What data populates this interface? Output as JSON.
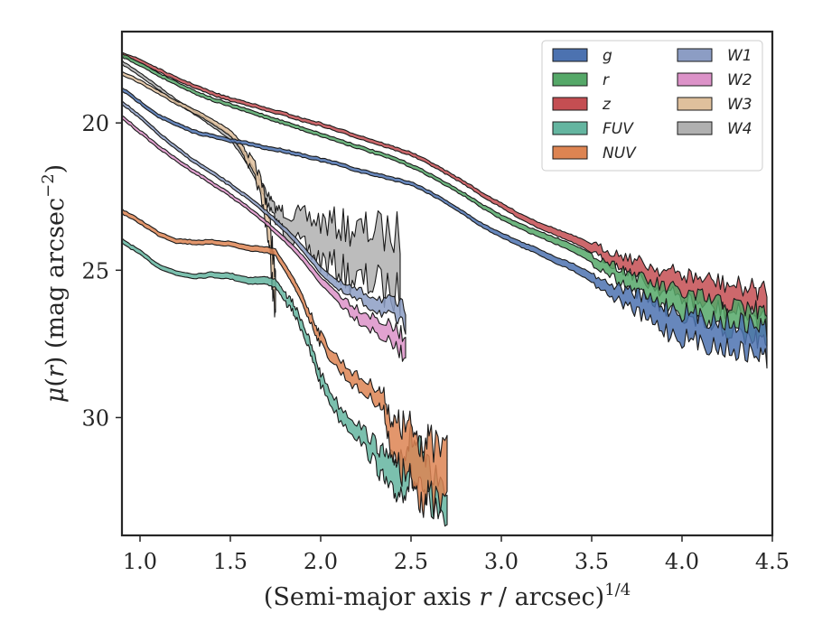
{
  "chart_data": {
    "type": "area",
    "title": "",
    "xlabel": "(Semi-major axis r / arcsec)1/4",
    "ylabel": "μ(r) (mag arcsec−2)",
    "xlim": [
      0.9,
      4.5
    ],
    "ylim": [
      34,
      16.9
    ],
    "y_inverted": true,
    "grid": false,
    "legend_position": "top-right",
    "legend_columns": 2,
    "x_ticks": [
      "1.0",
      "1.5",
      "2.0",
      "2.5",
      "3.0",
      "3.5",
      "4.0",
      "4.5"
    ],
    "y_ticks": [
      "20",
      "25",
      "30"
    ],
    "series": [
      {
        "name": "g",
        "color": "#4c72b0",
        "points": [
          [
            0.9,
            18.85
          ],
          [
            1.0,
            19.3
          ],
          [
            1.1,
            19.75
          ],
          [
            1.2,
            20.05
          ],
          [
            1.3,
            20.3
          ],
          [
            1.4,
            20.45
          ],
          [
            1.5,
            20.6
          ],
          [
            1.6,
            20.7
          ],
          [
            1.7,
            20.85
          ],
          [
            1.8,
            20.95
          ],
          [
            1.9,
            21.1
          ],
          [
            2.0,
            21.25
          ],
          [
            2.1,
            21.4
          ],
          [
            2.2,
            21.6
          ],
          [
            2.3,
            21.75
          ],
          [
            2.4,
            21.9
          ],
          [
            2.5,
            22.05
          ],
          [
            2.6,
            22.35
          ],
          [
            2.7,
            22.7
          ],
          [
            2.8,
            23.1
          ],
          [
            2.9,
            23.5
          ],
          [
            3.0,
            23.8
          ],
          [
            3.1,
            24.1
          ],
          [
            3.2,
            24.35
          ],
          [
            3.3,
            24.65
          ],
          [
            3.4,
            24.9
          ],
          [
            3.5,
            25.25
          ],
          [
            3.6,
            25.65
          ],
          [
            3.7,
            25.95
          ],
          [
            3.8,
            26.3
          ],
          [
            3.9,
            26.6
          ],
          [
            4.0,
            26.85
          ],
          [
            4.1,
            27.0
          ],
          [
            4.2,
            27.15
          ],
          [
            4.3,
            27.25
          ],
          [
            4.4,
            27.35
          ],
          [
            4.47,
            27.45
          ]
        ],
        "width": [
          0.12,
          0.12,
          0.12,
          0.12,
          0.12,
          0.12,
          0.12,
          0.12,
          0.12,
          0.12,
          0.12,
          0.12,
          0.12,
          0.12,
          0.12,
          0.12,
          0.12,
          0.12,
          0.12,
          0.12,
          0.14,
          0.16,
          0.18,
          0.2,
          0.22,
          0.25,
          0.3,
          0.4,
          0.55,
          0.7,
          0.85,
          0.9,
          0.9,
          0.9,
          0.95,
          1.0,
          1.0
        ]
      },
      {
        "name": "r",
        "color": "#55a868",
        "points": [
          [
            0.9,
            17.7
          ],
          [
            1.0,
            18.0
          ],
          [
            1.1,
            18.35
          ],
          [
            1.2,
            18.65
          ],
          [
            1.3,
            18.95
          ],
          [
            1.4,
            19.2
          ],
          [
            1.5,
            19.4
          ],
          [
            1.6,
            19.6
          ],
          [
            1.7,
            19.8
          ],
          [
            1.8,
            20.0
          ],
          [
            1.9,
            20.2
          ],
          [
            2.0,
            20.4
          ],
          [
            2.1,
            20.6
          ],
          [
            2.2,
            20.8
          ],
          [
            2.3,
            21.0
          ],
          [
            2.4,
            21.2
          ],
          [
            2.5,
            21.45
          ],
          [
            2.6,
            21.75
          ],
          [
            2.7,
            22.1
          ],
          [
            2.8,
            22.45
          ],
          [
            2.9,
            22.85
          ],
          [
            3.0,
            23.2
          ],
          [
            3.1,
            23.5
          ],
          [
            3.2,
            23.75
          ],
          [
            3.3,
            24.0
          ],
          [
            3.4,
            24.25
          ],
          [
            3.5,
            24.6
          ],
          [
            3.6,
            24.95
          ],
          [
            3.7,
            25.3
          ],
          [
            3.8,
            25.65
          ],
          [
            3.9,
            25.95
          ],
          [
            4.0,
            26.2
          ],
          [
            4.1,
            26.4
          ],
          [
            4.2,
            26.55
          ],
          [
            4.3,
            26.7
          ],
          [
            4.4,
            26.85
          ],
          [
            4.47,
            26.95
          ]
        ],
        "width": [
          0.12,
          0.12,
          0.12,
          0.12,
          0.12,
          0.12,
          0.12,
          0.12,
          0.12,
          0.12,
          0.12,
          0.12,
          0.12,
          0.12,
          0.12,
          0.12,
          0.12,
          0.12,
          0.12,
          0.12,
          0.14,
          0.16,
          0.18,
          0.2,
          0.22,
          0.25,
          0.3,
          0.4,
          0.5,
          0.6,
          0.75,
          0.85,
          0.9,
          0.9,
          0.95,
          1.0,
          1.0
        ]
      },
      {
        "name": "z",
        "color": "#c44e52",
        "points": [
          [
            0.9,
            17.65
          ],
          [
            1.0,
            17.9
          ],
          [
            1.1,
            18.2
          ],
          [
            1.2,
            18.5
          ],
          [
            1.3,
            18.75
          ],
          [
            1.4,
            19.0
          ],
          [
            1.5,
            19.2
          ],
          [
            1.6,
            19.35
          ],
          [
            1.7,
            19.55
          ],
          [
            1.8,
            19.7
          ],
          [
            1.9,
            19.9
          ],
          [
            2.0,
            20.05
          ],
          [
            2.1,
            20.25
          ],
          [
            2.2,
            20.45
          ],
          [
            2.3,
            20.65
          ],
          [
            2.4,
            20.85
          ],
          [
            2.5,
            21.05
          ],
          [
            2.6,
            21.35
          ],
          [
            2.7,
            21.7
          ],
          [
            2.8,
            22.05
          ],
          [
            2.9,
            22.45
          ],
          [
            3.0,
            22.8
          ],
          [
            3.1,
            23.15
          ],
          [
            3.2,
            23.45
          ],
          [
            3.3,
            23.7
          ],
          [
            3.4,
            23.95
          ],
          [
            3.5,
            24.25
          ],
          [
            3.6,
            24.55
          ],
          [
            3.7,
            24.8
          ],
          [
            3.8,
            25.1
          ],
          [
            3.9,
            25.35
          ],
          [
            4.0,
            25.55
          ],
          [
            4.1,
            25.7
          ],
          [
            4.2,
            25.85
          ],
          [
            4.3,
            26.0
          ],
          [
            4.4,
            26.1
          ],
          [
            4.47,
            26.2
          ]
        ],
        "width": [
          0.12,
          0.12,
          0.12,
          0.12,
          0.12,
          0.12,
          0.12,
          0.12,
          0.12,
          0.12,
          0.12,
          0.12,
          0.12,
          0.12,
          0.12,
          0.12,
          0.12,
          0.12,
          0.12,
          0.12,
          0.14,
          0.16,
          0.18,
          0.2,
          0.22,
          0.25,
          0.3,
          0.4,
          0.5,
          0.6,
          0.7,
          0.8,
          0.85,
          0.9,
          0.9,
          0.95,
          1.0
        ]
      },
      {
        "name": "FUV",
        "color": "#64b5a0",
        "points": [
          [
            0.9,
            24.0
          ],
          [
            1.0,
            24.4
          ],
          [
            1.1,
            24.85
          ],
          [
            1.2,
            25.1
          ],
          [
            1.3,
            25.2
          ],
          [
            1.4,
            25.15
          ],
          [
            1.5,
            25.2
          ],
          [
            1.6,
            25.35
          ],
          [
            1.7,
            25.35
          ],
          [
            1.75,
            25.45
          ],
          [
            1.8,
            25.9
          ],
          [
            1.85,
            26.3
          ],
          [
            1.9,
            26.9
          ],
          [
            1.95,
            27.8
          ],
          [
            2.0,
            28.7
          ],
          [
            2.1,
            29.8
          ],
          [
            2.2,
            30.4
          ],
          [
            2.3,
            31.2
          ],
          [
            2.35,
            31.7
          ],
          [
            2.4,
            32.1
          ],
          [
            2.45,
            31.8
          ],
          [
            2.5,
            31.4
          ],
          [
            2.55,
            31.8
          ],
          [
            2.6,
            32.4
          ],
          [
            2.7,
            32.9
          ]
        ],
        "width": [
          0.15,
          0.15,
          0.15,
          0.15,
          0.15,
          0.18,
          0.2,
          0.22,
          0.25,
          0.28,
          0.3,
          0.32,
          0.35,
          0.38,
          0.4,
          0.45,
          0.5,
          0.7,
          0.9,
          1.1,
          1.3,
          1.4,
          1.4,
          1.2,
          1.0
        ]
      },
      {
        "name": "NUV",
        "color": "#dd8452",
        "points": [
          [
            0.9,
            23.0
          ],
          [
            1.0,
            23.35
          ],
          [
            1.1,
            23.75
          ],
          [
            1.2,
            24.0
          ],
          [
            1.3,
            24.05
          ],
          [
            1.4,
            24.05
          ],
          [
            1.5,
            24.1
          ],
          [
            1.6,
            24.25
          ],
          [
            1.7,
            24.3
          ],
          [
            1.75,
            24.4
          ],
          [
            1.8,
            24.9
          ],
          [
            1.85,
            25.4
          ],
          [
            1.9,
            26.0
          ],
          [
            1.95,
            26.7
          ],
          [
            2.0,
            27.35
          ],
          [
            2.1,
            28.2
          ],
          [
            2.2,
            28.8
          ],
          [
            2.3,
            29.2
          ],
          [
            2.35,
            29.5
          ],
          [
            2.4,
            30.8
          ],
          [
            2.45,
            31.1
          ],
          [
            2.5,
            31.3
          ],
          [
            2.55,
            31.6
          ],
          [
            2.6,
            31.9
          ],
          [
            2.7,
            32.1
          ]
        ],
        "width": [
          0.15,
          0.15,
          0.15,
          0.15,
          0.15,
          0.15,
          0.16,
          0.18,
          0.2,
          0.22,
          0.25,
          0.28,
          0.3,
          0.32,
          0.35,
          0.4,
          0.45,
          0.5,
          0.6,
          1.2,
          1.6,
          1.8,
          1.9,
          1.9,
          1.9
        ]
      },
      {
        "name": "W1",
        "color": "#8c9dc4",
        "points": [
          [
            0.9,
            19.3
          ],
          [
            1.0,
            19.8
          ],
          [
            1.1,
            20.35
          ],
          [
            1.2,
            20.85
          ],
          [
            1.3,
            21.3
          ],
          [
            1.4,
            21.7
          ],
          [
            1.5,
            22.1
          ],
          [
            1.6,
            22.55
          ],
          [
            1.7,
            23.05
          ],
          [
            1.8,
            23.6
          ],
          [
            1.9,
            24.25
          ],
          [
            2.0,
            25.0
          ],
          [
            2.1,
            25.55
          ],
          [
            2.2,
            25.85
          ],
          [
            2.3,
            26.1
          ],
          [
            2.4,
            26.35
          ],
          [
            2.47,
            26.6
          ]
        ],
        "width": [
          0.12,
          0.12,
          0.12,
          0.12,
          0.12,
          0.12,
          0.12,
          0.12,
          0.14,
          0.16,
          0.2,
          0.25,
          0.3,
          0.35,
          0.45,
          0.55,
          0.65
        ]
      },
      {
        "name": "W2",
        "color": "#dc92c8",
        "points": [
          [
            0.9,
            19.8
          ],
          [
            1.0,
            20.3
          ],
          [
            1.1,
            20.8
          ],
          [
            1.2,
            21.25
          ],
          [
            1.3,
            21.65
          ],
          [
            1.4,
            22.05
          ],
          [
            1.5,
            22.45
          ],
          [
            1.6,
            22.9
          ],
          [
            1.7,
            23.4
          ],
          [
            1.8,
            23.95
          ],
          [
            1.9,
            24.6
          ],
          [
            2.0,
            25.35
          ],
          [
            2.1,
            25.95
          ],
          [
            2.2,
            26.45
          ],
          [
            2.3,
            26.85
          ],
          [
            2.4,
            27.25
          ],
          [
            2.47,
            27.6
          ]
        ],
        "width": [
          0.12,
          0.12,
          0.12,
          0.12,
          0.12,
          0.12,
          0.12,
          0.12,
          0.14,
          0.16,
          0.2,
          0.25,
          0.3,
          0.4,
          0.5,
          0.6,
          0.7
        ]
      },
      {
        "name": "W3",
        "color": "#dfc09c",
        "points": [
          [
            0.9,
            18.3
          ],
          [
            1.0,
            18.6
          ],
          [
            1.1,
            18.95
          ],
          [
            1.2,
            19.3
          ],
          [
            1.3,
            19.6
          ],
          [
            1.4,
            19.95
          ],
          [
            1.5,
            20.35
          ],
          [
            1.55,
            20.7
          ],
          [
            1.6,
            21.25
          ],
          [
            1.65,
            21.85
          ],
          [
            1.7,
            23.0
          ],
          [
            1.73,
            24.6
          ],
          [
            1.75,
            26.2
          ]
        ],
        "width": [
          0.12,
          0.12,
          0.12,
          0.12,
          0.14,
          0.16,
          0.2,
          0.25,
          0.35,
          0.5,
          0.8,
          1.2,
          1.4
        ]
      },
      {
        "name": "W4",
        "color": "#b0b0b0",
        "points": [
          [
            0.9,
            17.95
          ],
          [
            1.0,
            18.35
          ],
          [
            1.1,
            18.8
          ],
          [
            1.2,
            19.25
          ],
          [
            1.3,
            19.65
          ],
          [
            1.4,
            20.05
          ],
          [
            1.5,
            20.5
          ],
          [
            1.55,
            20.9
          ],
          [
            1.6,
            21.35
          ],
          [
            1.65,
            21.9
          ],
          [
            1.7,
            22.5
          ],
          [
            1.75,
            23.1
          ],
          [
            1.8,
            23.35
          ],
          [
            1.9,
            23.7
          ],
          [
            2.0,
            24.0
          ],
          [
            2.1,
            24.2
          ],
          [
            2.2,
            24.5
          ],
          [
            2.3,
            24.55
          ],
          [
            2.44,
            24.85
          ]
        ],
        "width": [
          0.12,
          0.12,
          0.12,
          0.12,
          0.12,
          0.14,
          0.16,
          0.2,
          0.25,
          0.3,
          0.35,
          0.4,
          0.7,
          1.0,
          1.3,
          1.5,
          1.7,
          1.8,
          2.1
        ]
      }
    ]
  }
}
